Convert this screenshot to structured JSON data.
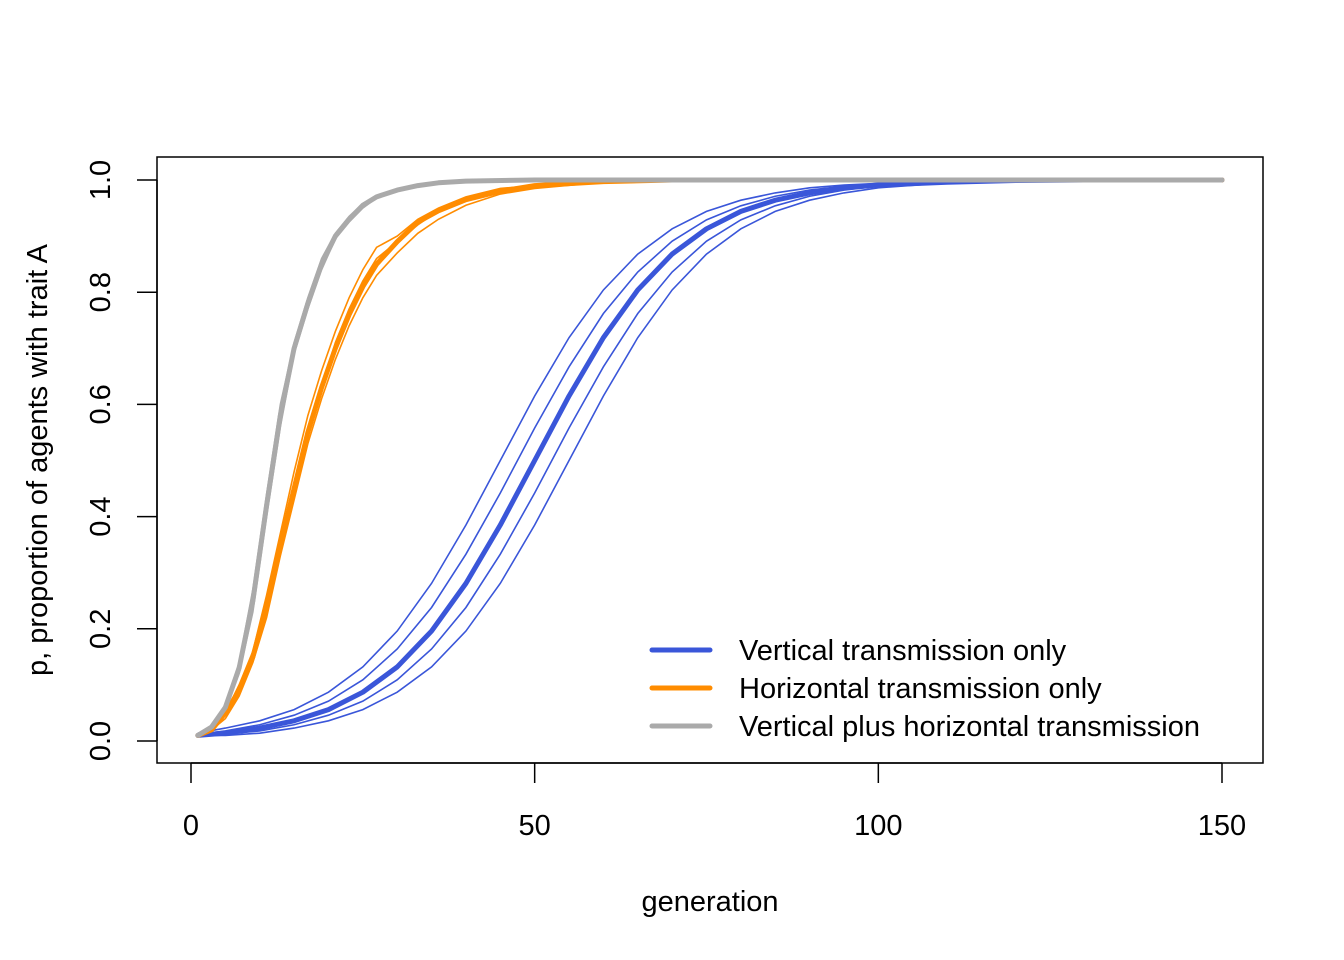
{
  "chart_data": {
    "type": "line",
    "title": "",
    "xlabel": "generation",
    "ylabel": "p, proportion of agents with trait A",
    "xlim": [
      1,
      150
    ],
    "ylim": [
      0,
      1
    ],
    "xticks": [
      0,
      50,
      100,
      150
    ],
    "xtick_labels": [
      "0",
      "50",
      "100",
      "150"
    ],
    "yticks": [
      0,
      0.2,
      0.4,
      0.6,
      0.8,
      1.0
    ],
    "ytick_labels": [
      "0.0",
      "0.2",
      "0.4",
      "0.6",
      "0.8",
      "1.0"
    ],
    "grid": false,
    "legend_position": "bottom-right",
    "series": [
      {
        "name": "Vertical transmission only",
        "color": "#3A56D9",
        "x": [
          1,
          5,
          10,
          15,
          20,
          25,
          30,
          35,
          40,
          45,
          50,
          55,
          60,
          65,
          70,
          75,
          80,
          85,
          90,
          95,
          100,
          110,
          120,
          130,
          150
        ],
        "mean": [
          0.01,
          0.014,
          0.023,
          0.036,
          0.056,
          0.087,
          0.132,
          0.196,
          0.281,
          0.385,
          0.5,
          0.615,
          0.719,
          0.804,
          0.868,
          0.913,
          0.944,
          0.964,
          0.977,
          0.986,
          0.991,
          0.996,
          0.999,
          1,
          1
        ],
        "runs": [
          [
            0.014,
            0.023,
            0.036,
            0.056,
            0.087,
            0.132,
            0.196,
            0.281,
            0.385,
            0.5,
            0.615,
            0.719,
            0.804,
            0.868,
            0.913,
            0.944,
            0.964,
            0.977,
            0.986,
            0.991,
            0.994,
            0.998,
            1,
            1,
            1
          ],
          [
            0.012,
            0.018,
            0.029,
            0.046,
            0.071,
            0.109,
            0.164,
            0.238,
            0.333,
            0.442,
            0.558,
            0.667,
            0.762,
            0.836,
            0.891,
            0.929,
            0.954,
            0.971,
            0.982,
            0.989,
            0.993,
            0.997,
            0.999,
            1,
            1
          ],
          [
            0.01,
            0.014,
            0.023,
            0.036,
            0.056,
            0.087,
            0.132,
            0.196,
            0.281,
            0.385,
            0.5,
            0.615,
            0.719,
            0.804,
            0.868,
            0.913,
            0.944,
            0.964,
            0.977,
            0.986,
            0.991,
            0.996,
            0.999,
            1,
            1
          ],
          [
            0.01,
            0.012,
            0.018,
            0.029,
            0.046,
            0.071,
            0.109,
            0.164,
            0.238,
            0.333,
            0.442,
            0.558,
            0.667,
            0.762,
            0.836,
            0.891,
            0.929,
            0.954,
            0.971,
            0.982,
            0.989,
            0.995,
            0.998,
            1,
            1
          ],
          [
            0.01,
            0.01,
            0.014,
            0.023,
            0.036,
            0.056,
            0.087,
            0.132,
            0.196,
            0.281,
            0.385,
            0.5,
            0.615,
            0.719,
            0.804,
            0.868,
            0.913,
            0.944,
            0.964,
            0.977,
            0.986,
            0.995,
            0.998,
            0.999,
            1
          ]
        ]
      },
      {
        "name": "Horizontal transmission only",
        "color": "#FF8C00",
        "x": [
          1,
          3,
          5,
          7,
          9,
          11,
          13,
          15,
          17,
          19,
          21,
          23,
          25,
          27,
          30,
          33,
          36,
          40,
          45,
          50,
          60,
          70,
          150
        ],
        "mean": [
          0.01,
          0.02,
          0.05,
          0.09,
          0.15,
          0.24,
          0.35,
          0.45,
          0.55,
          0.63,
          0.7,
          0.76,
          0.81,
          0.85,
          0.89,
          0.925,
          0.945,
          0.965,
          0.98,
          0.99,
          0.997,
          1,
          1
        ],
        "runs": [
          [
            0.01,
            0.02,
            0.05,
            0.1,
            0.16,
            0.26,
            0.37,
            0.48,
            0.58,
            0.66,
            0.73,
            0.79,
            0.84,
            0.88,
            0.9,
            0.93,
            0.95,
            0.97,
            0.985,
            0.99,
            0.998,
            1,
            1
          ],
          [
            0.01,
            0.02,
            0.04,
            0.08,
            0.14,
            0.22,
            0.33,
            0.43,
            0.53,
            0.61,
            0.68,
            0.74,
            0.79,
            0.83,
            0.87,
            0.905,
            0.93,
            0.955,
            0.975,
            0.985,
            0.996,
            1,
            1
          ],
          [
            0.01,
            0.02,
            0.05,
            0.09,
            0.15,
            0.24,
            0.35,
            0.45,
            0.55,
            0.63,
            0.71,
            0.77,
            0.82,
            0.86,
            0.89,
            0.92,
            0.945,
            0.965,
            0.98,
            0.99,
            0.997,
            1,
            1
          ]
        ]
      },
      {
        "name": "Vertical plus horizontal transmission",
        "color": "#AAAAAA",
        "x": [
          1,
          3,
          5,
          7,
          9,
          11,
          13,
          15,
          17,
          19,
          21,
          23,
          25,
          27,
          30,
          33,
          36,
          40,
          50,
          150
        ],
        "mean": [
          0.01,
          0.025,
          0.06,
          0.13,
          0.25,
          0.42,
          0.58,
          0.7,
          0.78,
          0.85,
          0.9,
          0.93,
          0.955,
          0.97,
          0.982,
          0.99,
          0.995,
          0.998,
          1,
          1
        ],
        "runs": [
          [
            0.01,
            0.025,
            0.065,
            0.14,
            0.27,
            0.44,
            0.6,
            0.71,
            0.79,
            0.86,
            0.905,
            0.935,
            0.958,
            0.972,
            0.984,
            0.991,
            0.996,
            0.999,
            1,
            1
          ],
          [
            0.01,
            0.024,
            0.055,
            0.12,
            0.23,
            0.4,
            0.56,
            0.69,
            0.77,
            0.84,
            0.895,
            0.925,
            0.95,
            0.968,
            0.98,
            0.989,
            0.994,
            0.998,
            1,
            1
          ]
        ]
      }
    ]
  }
}
